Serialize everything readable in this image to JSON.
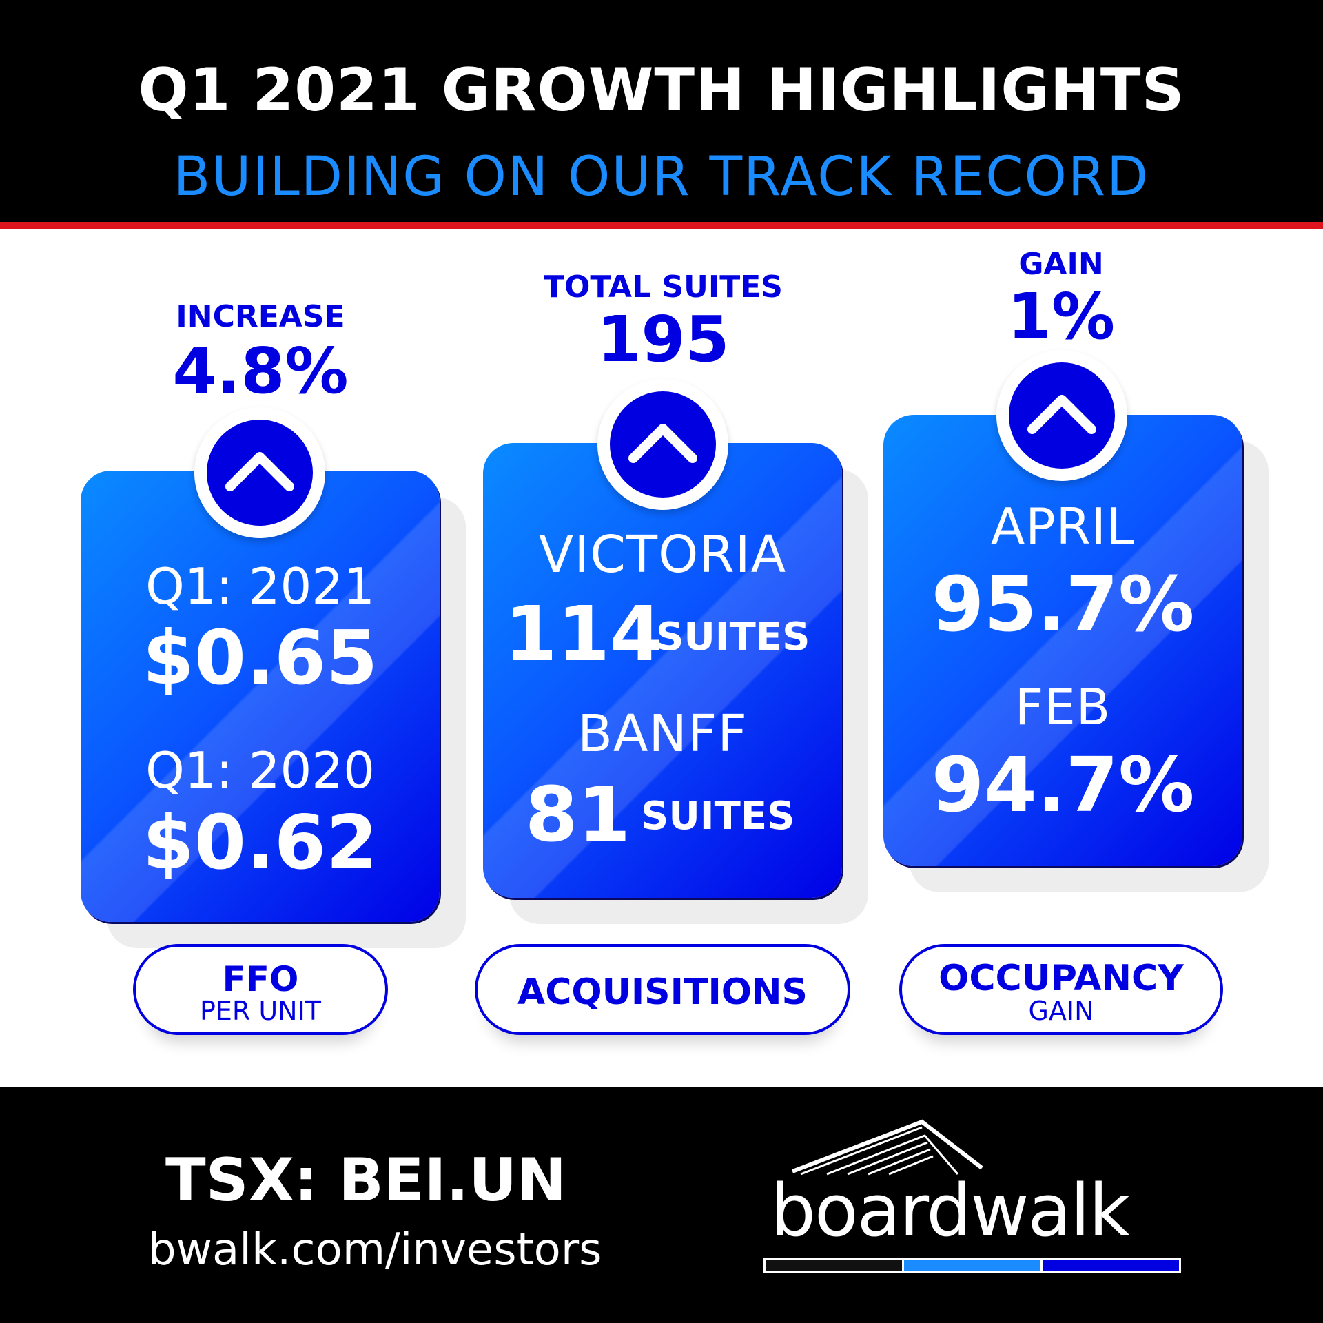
{
  "header": {
    "title": "Q1 2021 GROWTH HIGHLIGHTS",
    "subtitle": "BUILDING ON OUR TRACK RECORD"
  },
  "colors": {
    "brand_blue": "#0000e0",
    "accent_blue": "#1a8cff",
    "accent_red": "#e0141e"
  },
  "cards": {
    "ffo": {
      "top_label": "INCREASE",
      "top_value": "4.8%",
      "icon": "chevron-up-icon",
      "row1_label": "Q1: 2021",
      "row1_value": "$0.65",
      "row2_label": "Q1: 2020",
      "row2_value": "$0.62",
      "pill_line1": "FFO",
      "pill_line2": "PER UNIT"
    },
    "acquisitions": {
      "top_label": "TOTAL SUITES",
      "top_value": "195",
      "icon": "chevron-up-icon",
      "row1_label": "VICTORIA",
      "row1_value": "114",
      "row1_unit": "SUITES",
      "row2_label": "BANFF",
      "row2_value": "81",
      "row2_unit": "SUITES",
      "pill_line1": "ACQUISITIONS"
    },
    "occupancy": {
      "top_label": "GAIN",
      "top_value": "1%",
      "icon": "chevron-up-icon",
      "row1_label": "APRIL",
      "row1_value": "95.7%",
      "row2_label": "FEB",
      "row2_value": "94.7%",
      "pill_line1": "OCCUPANCY",
      "pill_line2": "GAIN"
    }
  },
  "footer": {
    "ticker": "TSX: BEI.UN",
    "url": "bwalk.com/investors",
    "logo_text": "boardwalk",
    "logo_bar_colors": [
      "#111111",
      "#1a8cff",
      "#0000e0"
    ]
  }
}
